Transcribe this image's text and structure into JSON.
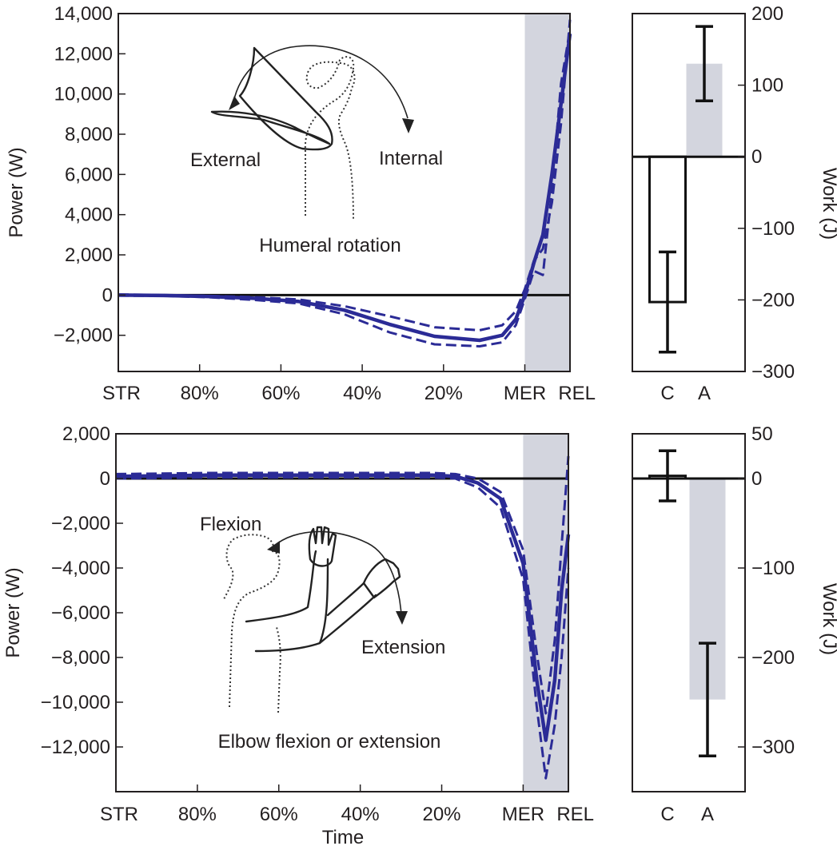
{
  "figure": {
    "time_axis_label": "Time",
    "time_tick_labels": [
      "STR",
      "80%",
      "60%",
      "40%",
      "20%",
      "MER",
      "REL"
    ],
    "power_axis_label": "Power (W)",
    "work_axis_label": "Work (J)",
    "bar_categories": [
      "C",
      "A"
    ]
  },
  "panel_top": {
    "annotation_labels": {
      "external": "External",
      "internal": "Internal",
      "caption": "Humeral rotation"
    }
  },
  "panel_bottom": {
    "annotation_labels": {
      "flexion": "Flexion",
      "extension": "Extension",
      "caption": "Elbow flexion or extension"
    }
  },
  "chart_data": [
    {
      "id": "top-power",
      "type": "line",
      "ylabel": "Power (W)",
      "x": [
        0,
        10,
        20,
        30,
        40,
        50,
        60,
        70,
        80,
        85,
        88,
        90,
        92,
        94,
        96,
        98,
        100
      ],
      "xlim": [
        0,
        100
      ],
      "ylim": [
        -3800,
        14000
      ],
      "yticks": [
        -2000,
        0,
        2000,
        4000,
        6000,
        8000,
        10000,
        12000,
        14000
      ],
      "ytick_labels": [
        "−2,000",
        "0",
        "2,000",
        "4,000",
        "6,000",
        "8,000",
        "10,000",
        "12,000",
        "14,000"
      ],
      "xtick_labels": [
        "STR",
        "80%",
        "60%",
        "40%",
        "20%",
        "MER",
        "REL"
      ],
      "shaded_region": [
        90,
        100
      ],
      "series": [
        {
          "name": "mean",
          "style": "solid",
          "values": [
            0,
            -20,
            -70,
            -160,
            -320,
            -750,
            -1450,
            -2050,
            -2250,
            -2000,
            -1200,
            0,
            1600,
            3000,
            6000,
            9500,
            13000
          ]
        },
        {
          "name": "upper",
          "style": "dashed",
          "values": [
            30,
            0,
            -40,
            -100,
            -220,
            -550,
            -1050,
            -1600,
            -1750,
            -1500,
            -800,
            300,
            1700,
            2300,
            4600,
            8500,
            13700
          ]
        },
        {
          "name": "lower",
          "style": "dashed",
          "values": [
            -30,
            -40,
            -110,
            -240,
            -420,
            -950,
            -1850,
            -2450,
            -2550,
            -2350,
            -1500,
            -200,
            1200,
            1000,
            5200,
            10500,
            13200
          ]
        }
      ]
    },
    {
      "id": "top-work",
      "type": "bar",
      "ylabel": "Work (J)",
      "categories": [
        "C",
        "A"
      ],
      "values": [
        -203,
        130
      ],
      "errors": [
        70,
        52
      ],
      "ylim": [
        -300,
        200
      ],
      "yticks": [
        -300,
        -200,
        -100,
        0,
        100,
        200
      ],
      "ytick_labels": [
        "−300",
        "−200",
        "−100",
        "0",
        "100",
        "200"
      ]
    },
    {
      "id": "bottom-power",
      "type": "line",
      "ylabel": "Power (W)",
      "x": [
        0,
        10,
        20,
        30,
        40,
        50,
        60,
        70,
        75,
        80,
        85,
        90,
        93,
        95,
        97,
        98.5,
        100
      ],
      "xlim": [
        0,
        100
      ],
      "ylim": [
        -14000,
        2000
      ],
      "yticks": [
        -12000,
        -10000,
        -8000,
        -6000,
        -4000,
        -2000,
        0,
        2000
      ],
      "ytick_labels": [
        "−12,000",
        "−10,000",
        "−8,000",
        "−6,000",
        "−4,000",
        "−2,000",
        "0",
        "2,000"
      ],
      "xtick_labels": [
        "STR",
        "80%",
        "60%",
        "40%",
        "20%",
        "MER",
        "REL"
      ],
      "shaded_region": [
        90,
        100
      ],
      "series": [
        {
          "name": "mean",
          "style": "solid",
          "values": [
            100,
            120,
            150,
            150,
            150,
            150,
            150,
            150,
            100,
            -200,
            -900,
            -3800,
            -9000,
            -11700,
            -9000,
            -5000,
            -2500
          ]
        },
        {
          "name": "upper",
          "style": "dashed",
          "values": [
            200,
            220,
            250,
            250,
            250,
            250,
            250,
            250,
            200,
            0,
            -600,
            -3200,
            -7800,
            -10500,
            -7200,
            -3000,
            1000
          ]
        },
        {
          "name": "lower",
          "style": "dashed",
          "values": [
            0,
            20,
            50,
            50,
            50,
            50,
            50,
            50,
            0,
            -400,
            -1300,
            -4500,
            -10200,
            -13400,
            -11000,
            -8000,
            -4000
          ]
        }
      ]
    },
    {
      "id": "bottom-work",
      "type": "bar",
      "ylabel": "Work (J)",
      "categories": [
        "C",
        "A"
      ],
      "values": [
        3,
        -247
      ],
      "errors": [
        28,
        63
      ],
      "ylim": [
        -350,
        50
      ],
      "yticks": [
        -300,
        -200,
        -100,
        0,
        50
      ],
      "ytick_labels": [
        "−300",
        "−200",
        "−100",
        "0",
        "50"
      ]
    }
  ]
}
